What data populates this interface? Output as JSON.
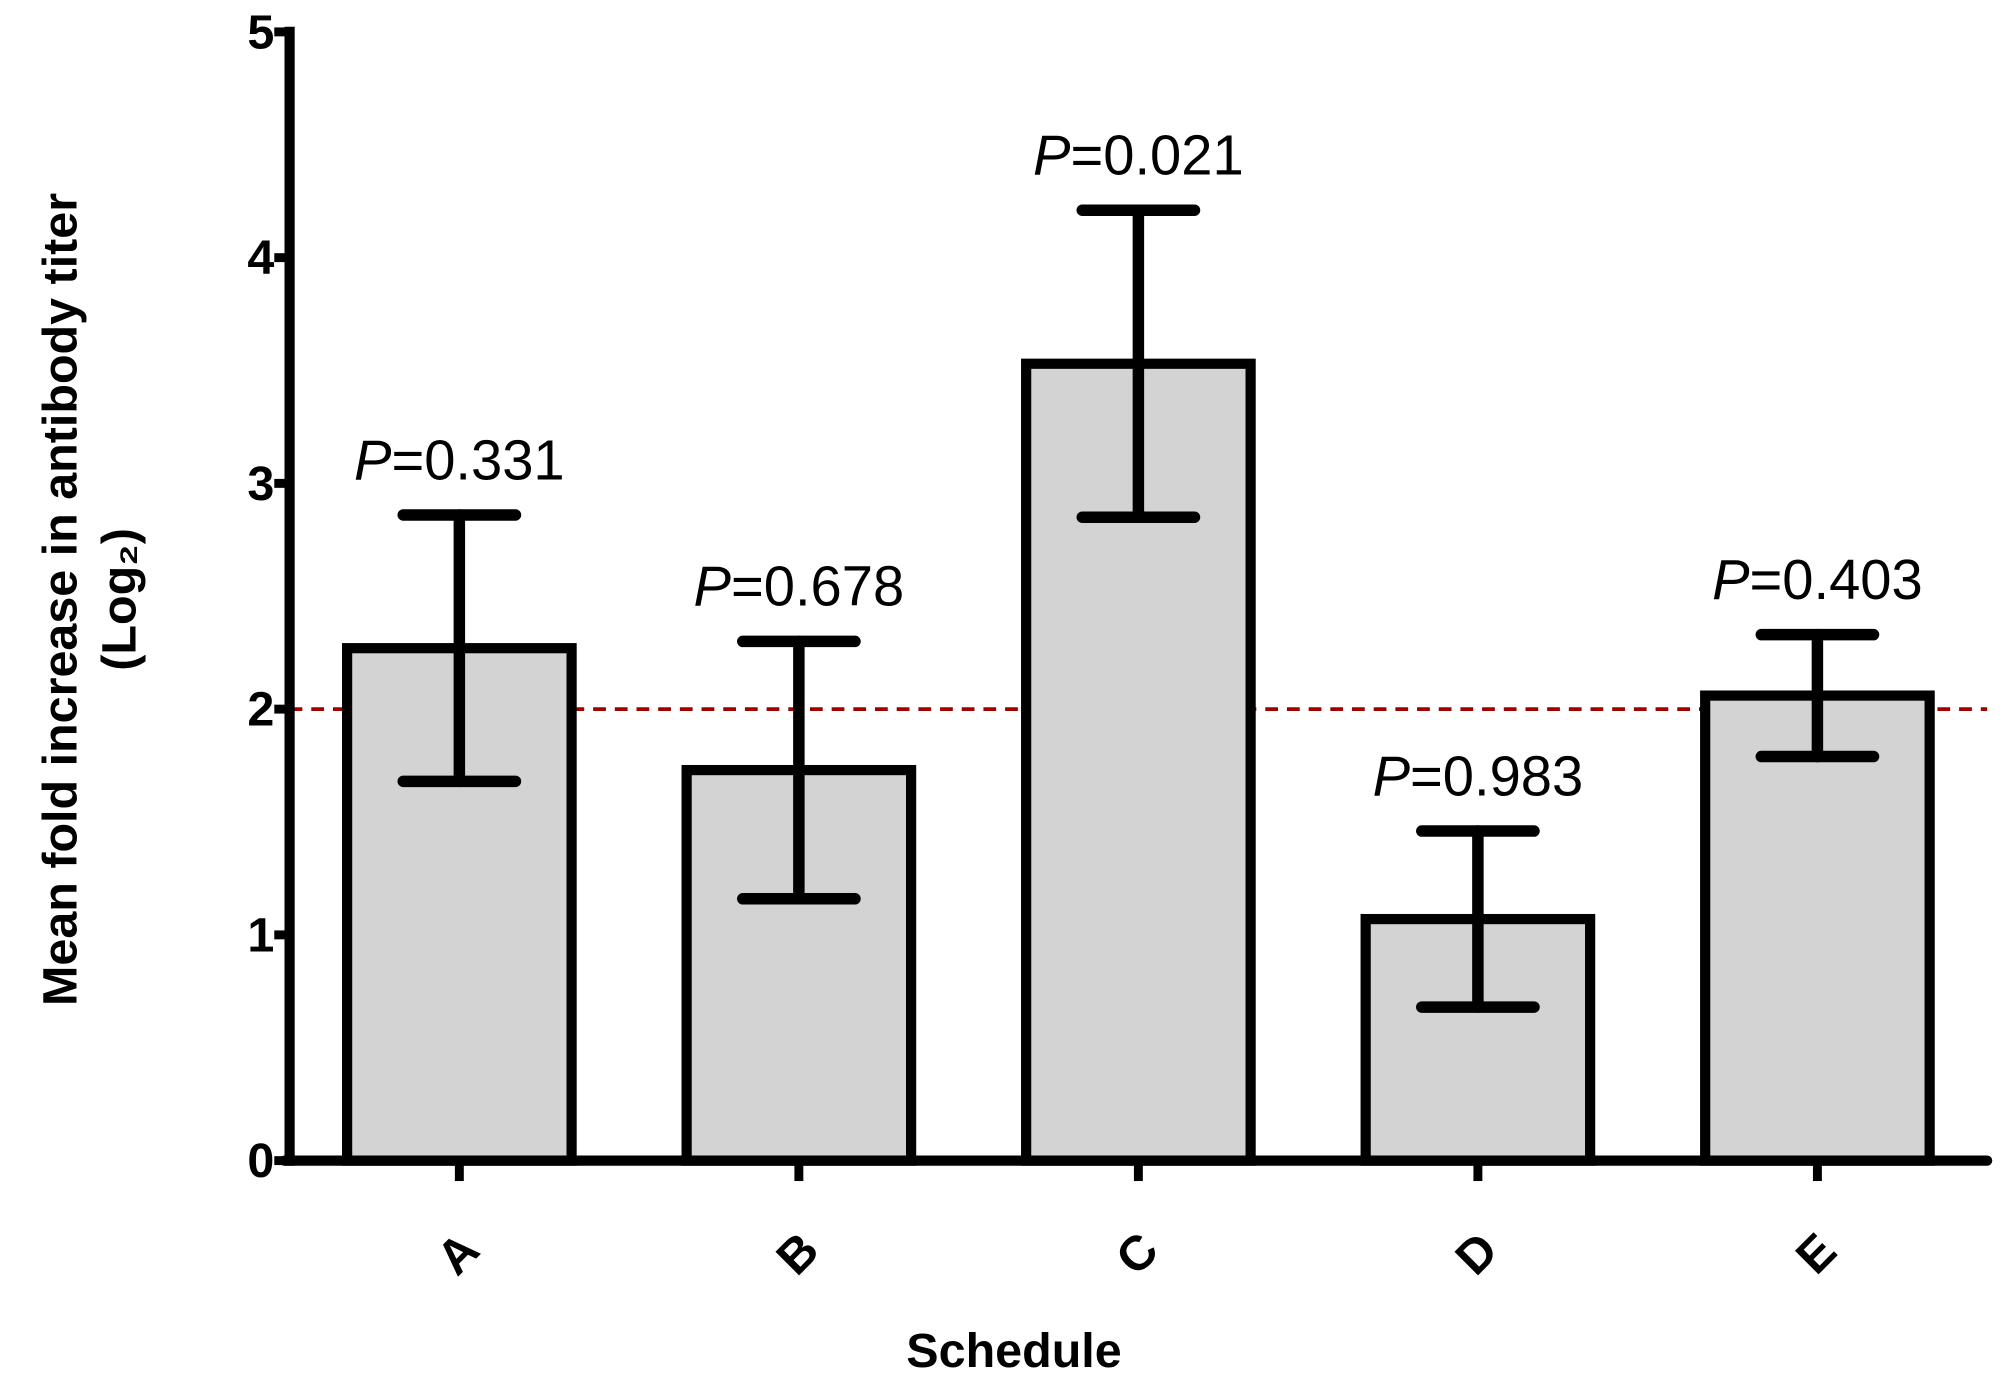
{
  "chart_data": {
    "type": "bar",
    "x_label": "Schedule",
    "y_label": [
      "Mean fold increase in antibody titer",
      "(Log₂)"
    ],
    "categories": [
      "A",
      "B",
      "C",
      "D",
      "E"
    ],
    "values": [
      2.27,
      1.73,
      3.53,
      1.07,
      2.06
    ],
    "errors": [
      0.59,
      0.57,
      0.68,
      0.39,
      0.27
    ],
    "annotations": [
      "P=0.331",
      "P=0.678",
      "P=0.021",
      "P=0.983",
      "P=0.403"
    ],
    "color": "#d3d3d3",
    "reference_line": {
      "value": 2,
      "color": "#a00000"
    },
    "ylim": [
      0,
      5
    ],
    "yticks": [
      0,
      1,
      2,
      3,
      4,
      5
    ]
  }
}
